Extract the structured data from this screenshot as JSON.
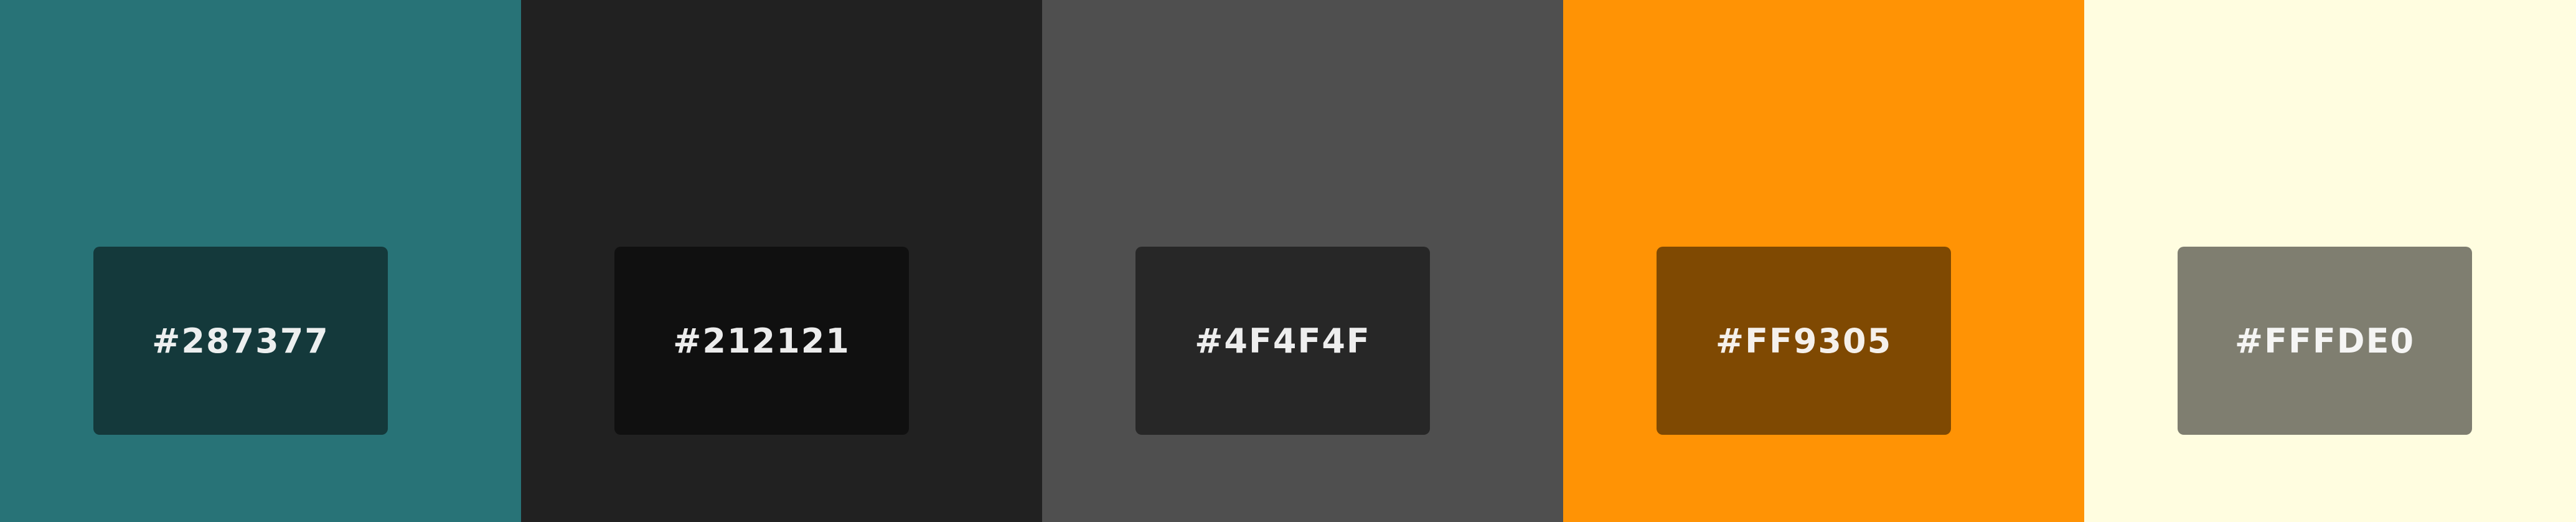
{
  "swatches": [
    {
      "color": "#287377",
      "label": "#287377"
    },
    {
      "color": "#212121",
      "label": "#212121"
    },
    {
      "color": "#4F4F4F",
      "label": "#4F4F4F"
    },
    {
      "color": "#FF9305",
      "label": "#FF9305"
    },
    {
      "color": "#FFFDE0",
      "label": "#FFFDE0"
    }
  ]
}
